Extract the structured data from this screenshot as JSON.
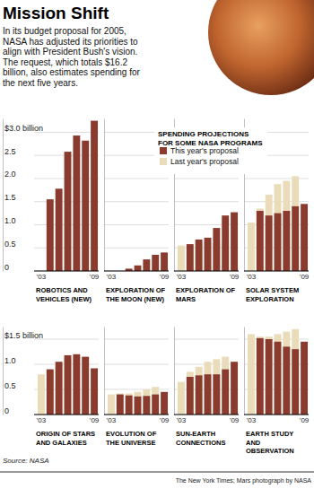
{
  "title": "Mission Shift",
  "subtitle": [
    "In its budget proposal for 2005,",
    "NASA has adjusted its priorities to",
    "align with President Bush's vision.",
    "The request, which totals $16.2",
    "billion, also estimates spending for",
    "the next five years."
  ],
  "legend_title": "SPENDING PROJECTIONS FOR SOME NASA PROGRAMS",
  "source": "Source: NASA",
  "credit": "The New York Times; Mars photograph by NASA",
  "chart_data": [
    {
      "type": "bar",
      "title": "ROBOTICS AND VEHICLES (NEW)",
      "categories": [
        "'03",
        null,
        null,
        null,
        null,
        null,
        "'09"
      ],
      "series": [
        {
          "name": "This year's proposal",
          "color": "#8b3a2e",
          "values": [
            null,
            1.55,
            1.78,
            2.58,
            2.93,
            2.82,
            3.25
          ]
        }
      ],
      "ylim": [
        0,
        3.3
      ],
      "yticks": [
        0,
        0.5,
        {
          "value": 1,
          "label": "1.0"
        },
        1.5,
        {
          "value": 2,
          "label": "2.0"
        },
        2.5,
        {
          "value": 3,
          "label": "$3.0 billion"
        }
      ],
      "grid": true
    },
    {
      "type": "bar",
      "title": "EXPLORATION OF THE MOON (NEW)",
      "categories": [
        "'03",
        null,
        null,
        null,
        null,
        null,
        "'09"
      ],
      "series": [
        {
          "name": "This year's proposal",
          "color": "#8b3a2e",
          "values": [
            null,
            null,
            0.05,
            0.12,
            0.25,
            0.35,
            0.4
          ]
        }
      ],
      "ylim": [
        0,
        3.3
      ],
      "yticks": [
        0,
        0.5,
        {
          "value": 1,
          "label": "1.0"
        },
        1.5,
        {
          "value": 2,
          "label": "2.0"
        },
        2.5,
        {
          "value": 3,
          "label": "$3.0 billion"
        }
      ],
      "grid": true,
      "tick_labels": "x"
    },
    {
      "type": "bar",
      "title": "EXPLORATION OF MARS",
      "categories": [
        "'03",
        null,
        null,
        null,
        null,
        null,
        "'09"
      ],
      "series": [
        {
          "name": "This year's proposal",
          "color": "#8b3a2e",
          "values": [
            null,
            0.58,
            0.68,
            0.72,
            0.93,
            1.2,
            1.27
          ]
        },
        {
          "name": "Last year's proposal",
          "color": "#eadcb8",
          "values": [
            0.55,
            0.55,
            0.6,
            0.62,
            0.6,
            0.62,
            null
          ]
        }
      ],
      "ylim": [
        0,
        3.3
      ],
      "yticks": [
        0,
        0.5,
        {
          "value": 1,
          "label": "1.0"
        },
        1.5,
        {
          "value": 2,
          "label": "2.0"
        },
        2.5,
        {
          "value": 3,
          "label": "$3.0 billion"
        }
      ],
      "grid": true,
      "tick_labels": "x"
    },
    {
      "type": "bar",
      "title": "SOLAR SYSTEM EXPLORATION",
      "categories": [
        "'03",
        null,
        null,
        null,
        null,
        null,
        "'09"
      ],
      "series": [
        {
          "name": "This year's proposal",
          "color": "#8b3a2e",
          "values": [
            null,
            1.3,
            1.2,
            1.25,
            1.3,
            1.4,
            1.45
          ]
        },
        {
          "name": "Last year's proposal",
          "color": "#eadcb8",
          "values": [
            1.05,
            1.35,
            1.65,
            1.88,
            1.95,
            2.05,
            null
          ]
        }
      ],
      "ylim": [
        0,
        3.3
      ],
      "yticks": [
        0,
        0.5,
        {
          "value": 1,
          "label": "1.0"
        },
        1.5,
        {
          "value": 2,
          "label": "2.0"
        },
        2.5,
        {
          "value": 3,
          "label": "$3.0 billion"
        }
      ],
      "grid": true,
      "tick_labels": "x"
    },
    {
      "type": "bar",
      "title": "ORIGIN OF STARS AND GALAXIES",
      "categories": [
        "'03",
        null,
        null,
        null,
        null,
        null,
        "'09"
      ],
      "series": [
        {
          "name": "This year's proposal",
          "color": "#8b3a2e",
          "values": [
            null,
            0.9,
            1.05,
            1.18,
            1.2,
            1.15,
            0.92
          ]
        },
        {
          "name": "Last year's proposal",
          "color": "#eadcb8",
          "values": [
            0.8,
            0.88,
            1.0,
            1.12,
            1.15,
            1.12,
            null
          ]
        }
      ],
      "ylim": [
        0,
        1.75
      ],
      "yticks": [
        0,
        0.5,
        {
          "value": 1,
          "label": "1.0"
        },
        {
          "value": 1.5,
          "label": "$1.5 billion"
        }
      ],
      "grid": true
    },
    {
      "type": "bar",
      "title": "EVOLUTION OF THE UNIVERSE",
      "categories": [
        "'03",
        null,
        null,
        null,
        null,
        null,
        "'09"
      ],
      "series": [
        {
          "name": "This year's proposal",
          "color": "#8b3a2e",
          "values": [
            null,
            0.4,
            0.38,
            0.36,
            0.37,
            0.4,
            0.45
          ]
        },
        {
          "name": "Last year's proposal",
          "color": "#eadcb8",
          "values": [
            0.4,
            0.42,
            0.42,
            0.45,
            0.5,
            0.55,
            null
          ]
        }
      ],
      "ylim": [
        0,
        1.75
      ],
      "yticks": [
        0,
        0.5,
        {
          "value": 1,
          "label": "1.0"
        },
        {
          "value": 1.5,
          "label": "$1.5 billion"
        }
      ],
      "grid": true,
      "tick_labels": "x"
    },
    {
      "type": "bar",
      "title": "SUN-EARTH CONNECTIONS",
      "categories": [
        "'03",
        null,
        null,
        null,
        null,
        null,
        "'09"
      ],
      "series": [
        {
          "name": "This year's proposal",
          "color": "#8b3a2e",
          "values": [
            null,
            0.75,
            0.78,
            0.8,
            0.8,
            0.9,
            1.05
          ]
        },
        {
          "name": "Last year's proposal",
          "color": "#eadcb8",
          "values": [
            0.65,
            0.85,
            0.95,
            1.05,
            1.1,
            1.15,
            null
          ]
        }
      ],
      "ylim": [
        0,
        1.75
      ],
      "yticks": [
        0,
        0.5,
        {
          "value": 1,
          "label": "1.0"
        },
        {
          "value": 1.5,
          "label": "$1.5 billion"
        }
      ],
      "grid": true,
      "tick_labels": "x"
    },
    {
      "type": "bar",
      "title": "EARTH STUDY AND OBSERVATION",
      "categories": [
        "'03",
        null,
        null,
        null,
        null,
        null,
        "'09"
      ],
      "series": [
        {
          "name": "This year's proposal",
          "color": "#8b3a2e",
          "values": [
            null,
            1.52,
            1.5,
            1.45,
            1.35,
            1.3,
            1.45
          ]
        },
        {
          "name": "Last year's proposal",
          "color": "#eadcb8",
          "values": [
            1.6,
            1.55,
            1.55,
            1.6,
            1.65,
            1.7,
            null
          ]
        }
      ],
      "ylim": [
        0,
        1.75
      ],
      "yticks": [
        0,
        0.5,
        {
          "value": 1,
          "label": "1.0"
        },
        {
          "value": 1.5,
          "label": "$1.5 billion"
        }
      ],
      "grid": true,
      "tick_labels": "x"
    }
  ]
}
